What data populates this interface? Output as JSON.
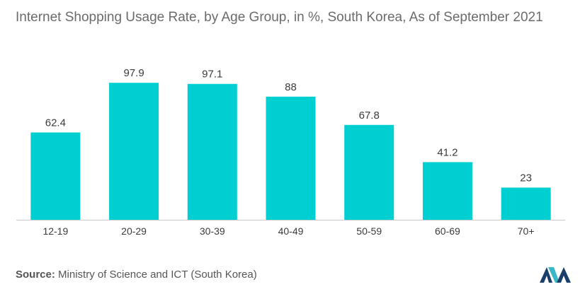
{
  "chart_data": {
    "type": "bar",
    "title": "Internet Shopping Usage Rate, by Age Group, in %, South Korea, As of September 2021",
    "categories": [
      "12-19",
      "20-29",
      "30-39",
      "40-49",
      "50-59",
      "60-69",
      "70+"
    ],
    "values": [
      62.4,
      97.9,
      97.1,
      88,
      67.8,
      41.2,
      23
    ],
    "value_labels": [
      "62.4",
      "97.9",
      "97.1",
      "88",
      "67.8",
      "41.2",
      "23"
    ],
    "xlabel": "",
    "ylabel": "",
    "ylim": [
      0,
      100
    ],
    "grid": false,
    "bar_color": "#00cfd1"
  },
  "source": {
    "label": "Source:",
    "text": "Ministry of Science and ICT (South Korea)"
  },
  "logo": {
    "icon": "mordor-logo-icon",
    "colors": [
      "#1b3f6b",
      "#39b6c7"
    ]
  }
}
